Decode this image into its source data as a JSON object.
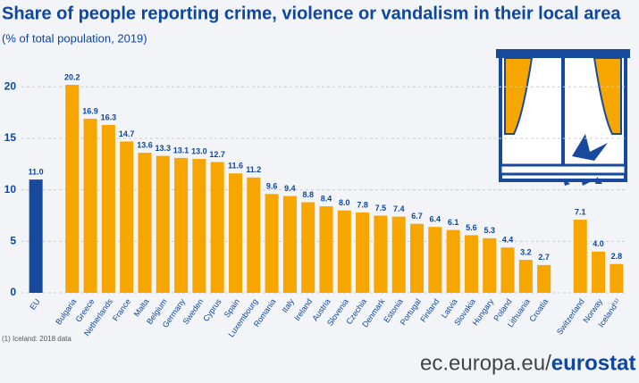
{
  "chart_data": {
    "type": "bar",
    "title": "Share of people reporting crime, violence or vandalism in their local area",
    "subtitle": "(% of total population, 2019)",
    "categories": [
      "EU",
      null,
      "Bulgaria",
      "Greece",
      "Netherlands",
      "France",
      "Malta",
      "Belgium",
      "Germany",
      "Sweden",
      "Cyprus",
      "Spain",
      "Luxembourg",
      "Romania",
      "Italy",
      "Ireland",
      "Austria",
      "Slovenia",
      "Czechia",
      "Denmark",
      "Estonia",
      "Portugal",
      "Finland",
      "Latvia",
      "Slovakia",
      "Hungary",
      "Poland",
      "Lithuania",
      "Croatia",
      null,
      "Switzerland",
      "Norway",
      "Iceland⁽¹⁾"
    ],
    "values": [
      11.0,
      null,
      20.2,
      16.9,
      16.3,
      14.7,
      13.6,
      13.3,
      13.1,
      13.0,
      12.7,
      11.6,
      11.2,
      9.6,
      9.4,
      8.8,
      8.4,
      8.0,
      7.8,
      7.5,
      7.4,
      6.7,
      6.4,
      6.1,
      5.6,
      5.3,
      4.4,
      3.2,
      2.7,
      null,
      7.1,
      4.0,
      2.8
    ],
    "value_labels": [
      "11.0",
      null,
      "20.2",
      "16.9",
      "16.3",
      "14.7",
      "13.6",
      "13.3",
      "13.1",
      "13.0",
      "12.7",
      "11.6",
      "11.2",
      "9.6",
      "9.4",
      "8.8",
      "8.4",
      "8.0",
      "7.8",
      "7.5",
      "7.4",
      "6.7",
      "6.4",
      "6.1",
      "5.6",
      "5.3",
      "4.4",
      "3.2",
      "2.7",
      null,
      "7.1",
      "4.0",
      "2.8"
    ],
    "colors": [
      "#174a9c",
      null,
      "#f7a600",
      "#f7a600",
      "#f7a600",
      "#f7a600",
      "#f7a600",
      "#f7a600",
      "#f7a600",
      "#f7a600",
      "#f7a600",
      "#f7a600",
      "#f7a600",
      "#f7a600",
      "#f7a600",
      "#f7a600",
      "#f7a600",
      "#f7a600",
      "#f7a600",
      "#f7a600",
      "#f7a600",
      "#f7a600",
      "#f7a600",
      "#f7a600",
      "#f7a600",
      "#f7a600",
      "#f7a600",
      "#f7a600",
      "#f7a600",
      null,
      "#f7a600",
      "#f7a600",
      "#f7a600"
    ],
    "ylim": [
      0,
      21.5
    ],
    "yticks": [
      0,
      5,
      10,
      15,
      20
    ],
    "grid": true,
    "footnote": "(1) Iceland: 2018 data",
    "source_prefix": "ec.europa.eu/",
    "source_brand": "eurostat"
  }
}
